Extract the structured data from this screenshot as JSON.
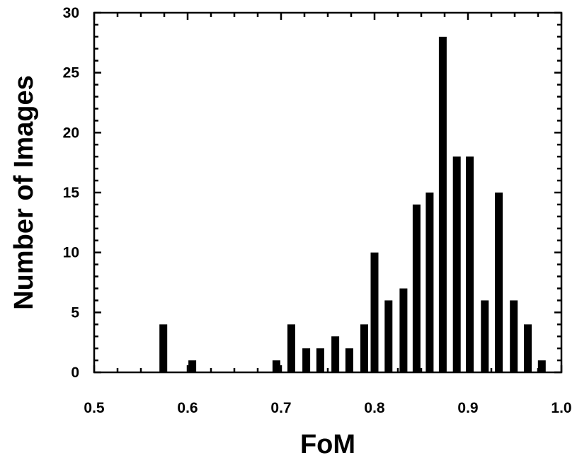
{
  "chart_data": {
    "type": "bar",
    "title": "",
    "xlabel": "FoM",
    "ylabel": "Number of Images",
    "xlim": [
      0.5,
      1.0
    ],
    "ylim": [
      0,
      30
    ],
    "xticks": [
      "0.5",
      "0.6",
      "0.7",
      "0.8",
      "0.9",
      "1.0"
    ],
    "yticks": [
      "0",
      "5",
      "10",
      "15",
      "20",
      "25",
      "30"
    ],
    "grid": false,
    "bar_color": "#000000",
    "x": [
      0.574,
      0.605,
      0.695,
      0.711,
      0.727,
      0.742,
      0.758,
      0.773,
      0.789,
      0.8,
      0.815,
      0.831,
      0.845,
      0.859,
      0.873,
      0.888,
      0.902,
      0.918,
      0.933,
      0.949,
      0.964,
      0.979
    ],
    "values": [
      4,
      1,
      1,
      4,
      2,
      2,
      3,
      2,
      4,
      10,
      6,
      7,
      14,
      15,
      28,
      18,
      18,
      6,
      15,
      6,
      4,
      1
    ]
  }
}
